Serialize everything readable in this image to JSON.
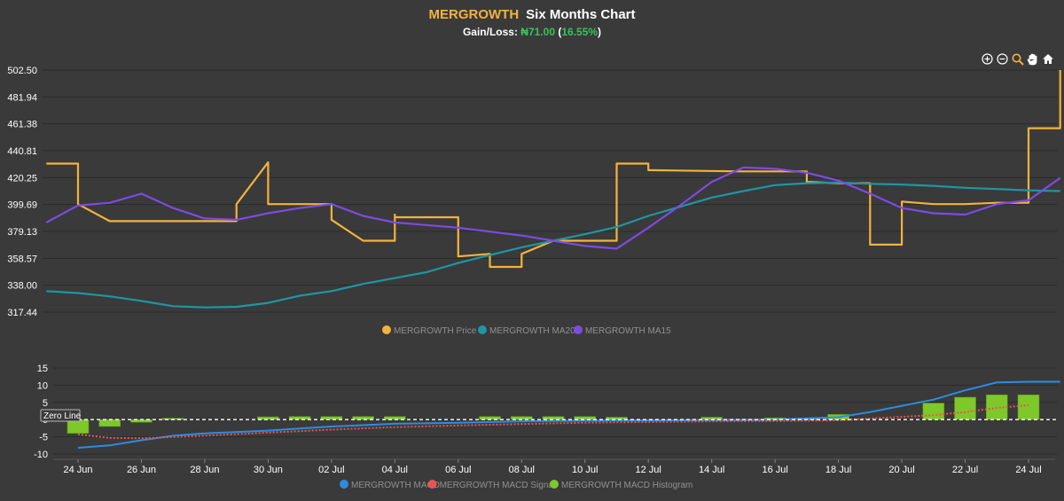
{
  "header": {
    "symbol": "MERGROWTH",
    "title": "Six Months Chart",
    "gain_label": "Gain/Loss:",
    "gain_value": "₦71.00",
    "gain_pct": "16.55%",
    "gain_open": "(",
    "gain_close": ")"
  },
  "toolbar": [
    {
      "icon": "zoom-in-icon"
    },
    {
      "icon": "zoom-out-icon"
    },
    {
      "icon": "magnifier-icon"
    },
    {
      "icon": "pan-hand-icon"
    },
    {
      "icon": "home-icon"
    }
  ],
  "colors": {
    "background": "#3a3a3a",
    "grid": "#2b2b2b",
    "price": "#f2b33d",
    "ma200": "#1e96a3",
    "ma15": "#7d4be0",
    "macd": "#2e8ce0",
    "signal": "#e85555",
    "histogram": "#7ec82a",
    "gain": "#37c45e"
  },
  "chart_data": [
    {
      "type": "line",
      "ylim": [
        317.44,
        502.5
      ],
      "yticks": [
        "502.50",
        "481.94",
        "461.38",
        "440.81",
        "420.25",
        "399.69",
        "379.13",
        "358.57",
        "338.00",
        "317.44"
      ],
      "legend_position": "bottom-center",
      "series": [
        {
          "name": "MERGROWTH Price",
          "color": "#f2b33d",
          "points": [
            [
              "23 Jun",
              431
            ],
            [
              "24 Jun",
              431
            ],
            [
              "24 Jun",
              400
            ],
            [
              "25 Jun",
              387
            ],
            [
              "29 Jun",
              387
            ],
            [
              "29 Jun",
              400
            ],
            [
              "30 Jun",
              432
            ],
            [
              "30 Jun",
              400
            ],
            [
              "02 Jul",
              400
            ],
            [
              "02 Jul",
              388
            ],
            [
              "03 Jul",
              372
            ],
            [
              "04 Jul",
              372
            ],
            [
              "04 Jul",
              392
            ],
            [
              "04 Jul",
              390
            ],
            [
              "06 Jul",
              390
            ],
            [
              "06 Jul",
              360
            ],
            [
              "07 Jul",
              362
            ],
            [
              "07 Jul",
              352
            ],
            [
              "08 Jul",
              352
            ],
            [
              "08 Jul",
              362
            ],
            [
              "09 Jul",
              372
            ],
            [
              "10 Jul",
              372
            ],
            [
              "11 Jul",
              372
            ],
            [
              "11 Jul",
              431
            ],
            [
              "12 Jul",
              431
            ],
            [
              "12 Jul",
              426
            ],
            [
              "15 Jul",
              425
            ],
            [
              "17 Jul",
              425
            ],
            [
              "17 Jul",
              417
            ],
            [
              "18 Jul",
              416
            ],
            [
              "19 Jul",
              416
            ],
            [
              "19 Jul",
              369
            ],
            [
              "20 Jul",
              369
            ],
            [
              "20 Jul",
              402
            ],
            [
              "21 Jul",
              400
            ],
            [
              "22 Jul",
              400
            ],
            [
              "23 Jul",
              401
            ],
            [
              "24 Jul",
              401
            ],
            [
              "24 Jul",
              430
            ],
            [
              "24 Jul",
              458
            ],
            [
              "25 Jul",
              458
            ],
            [
              "25 Jul",
              502.5
            ]
          ]
        },
        {
          "name": "MERGROWTH MA200",
          "color": "#1e96a3",
          "points": [
            [
              "23 Jun",
              333.5
            ],
            [
              "24 Jun",
              332
            ],
            [
              "25 Jun",
              329.5
            ],
            [
              "26 Jun",
              326
            ],
            [
              "27 Jun",
              322
            ],
            [
              "28 Jun",
              321
            ],
            [
              "29 Jun",
              321.5
            ],
            [
              "30 Jun",
              324.5
            ],
            [
              "01 Jul",
              330
            ],
            [
              "02 Jul",
              333.5
            ],
            [
              "03 Jul",
              339
            ],
            [
              "04 Jul",
              343.5
            ],
            [
              "05 Jul",
              348
            ],
            [
              "06 Jul",
              355
            ],
            [
              "07 Jul",
              361
            ],
            [
              "08 Jul",
              367
            ],
            [
              "09 Jul",
              372
            ],
            [
              "10 Jul",
              377
            ],
            [
              "11 Jul",
              382.5
            ],
            [
              "12 Jul",
              391
            ],
            [
              "13 Jul",
              398
            ],
            [
              "14 Jul",
              405
            ],
            [
              "15 Jul",
              410
            ],
            [
              "16 Jul",
              414.5
            ],
            [
              "17 Jul",
              416
            ],
            [
              "18 Jul",
              416.5
            ],
            [
              "19 Jul",
              415.5
            ],
            [
              "20 Jul",
              415
            ],
            [
              "21 Jul",
              414
            ],
            [
              "22 Jul",
              412.5
            ],
            [
              "23 Jul",
              411.5
            ],
            [
              "24 Jul",
              410.5
            ],
            [
              "25 Jul",
              410
            ]
          ]
        },
        {
          "name": "MERGROWTH MA15",
          "color": "#7d4be0",
          "points": [
            [
              "23 Jun",
              386
            ],
            [
              "24 Jun",
              399
            ],
            [
              "25 Jun",
              401
            ],
            [
              "26 Jun",
              408
            ],
            [
              "27 Jun",
              397
            ],
            [
              "28 Jun",
              389
            ],
            [
              "29 Jun",
              388
            ],
            [
              "30 Jun",
              393
            ],
            [
              "01 Jul",
              397
            ],
            [
              "02 Jul",
              400
            ],
            [
              "03 Jul",
              391
            ],
            [
              "04 Jul",
              386
            ],
            [
              "05 Jul",
              384
            ],
            [
              "06 Jul",
              382
            ],
            [
              "07 Jul",
              379
            ],
            [
              "08 Jul",
              376
            ],
            [
              "09 Jul",
              372
            ],
            [
              "10 Jul",
              368
            ],
            [
              "11 Jul",
              366
            ],
            [
              "12 Jul",
              382
            ],
            [
              "13 Jul",
              399
            ],
            [
              "14 Jul",
              417
            ],
            [
              "15 Jul",
              428
            ],
            [
              "16 Jul",
              427
            ],
            [
              "17 Jul",
              424
            ],
            [
              "18 Jul",
              418
            ],
            [
              "19 Jul",
              408
            ],
            [
              "20 Jul",
              397
            ],
            [
              "21 Jul",
              393
            ],
            [
              "22 Jul",
              392
            ],
            [
              "23 Jul",
              400
            ],
            [
              "24 Jul",
              403
            ],
            [
              "25 Jul",
              420
            ]
          ]
        }
      ]
    },
    {
      "type": "bar",
      "ylim": [
        -10,
        15
      ],
      "yticks": [
        "15",
        "10",
        "5",
        "0",
        "-5",
        "-10"
      ],
      "xticks": [
        "24 Jun",
        "26 Jun",
        "28 Jun",
        "30 Jun",
        "02 Jul",
        "04 Jul",
        "06 Jul",
        "08 Jul",
        "10 Jul",
        "12 Jul",
        "14 Jul",
        "16 Jul",
        "18 Jul",
        "20 Jul",
        "22 Jul",
        "24 Jul"
      ],
      "annotation": "Zero Line",
      "legend_position": "bottom-center",
      "series": [
        {
          "name": "MERGROWTH MACD",
          "color": "#2e8ce0",
          "style": "line",
          "points": [
            [
              "24 Jun",
              -8.2
            ],
            [
              "25 Jun",
              -7.5
            ],
            [
              "26 Jun",
              -6
            ],
            [
              "27 Jun",
              -4.7
            ],
            [
              "28 Jun",
              -4
            ],
            [
              "30 Jun",
              -3.2
            ],
            [
              "01 Jul",
              -2.6
            ],
            [
              "02 Jul",
              -2
            ],
            [
              "04 Jul",
              -1.2
            ],
            [
              "06 Jul",
              -0.9
            ],
            [
              "08 Jul",
              -0.5
            ],
            [
              "10 Jul",
              -0.3
            ],
            [
              "12 Jul",
              -0.2
            ],
            [
              "14 Jul",
              -0.1
            ],
            [
              "16 Jul",
              0
            ],
            [
              "18 Jul",
              0.7
            ],
            [
              "19 Jul",
              2.2
            ],
            [
              "20 Jul",
              4
            ],
            [
              "21 Jul",
              5.8
            ],
            [
              "22 Jul",
              8.5
            ],
            [
              "23 Jul",
              10.8
            ],
            [
              "24 Jul",
              11
            ],
            [
              "25 Jul",
              11
            ]
          ]
        },
        {
          "name": "MERGROWTH MACD Signal",
          "color": "#e85555",
          "style": "dotted",
          "points": [
            [
              "24 Jun",
              -4.3
            ],
            [
              "25 Jun",
              -5.3
            ],
            [
              "26 Jun",
              -5.4
            ],
            [
              "28 Jun",
              -4.7
            ],
            [
              "30 Jun",
              -3.8
            ],
            [
              "02 Jul",
              -2.9
            ],
            [
              "04 Jul",
              -2.2
            ],
            [
              "06 Jul",
              -1.7
            ],
            [
              "08 Jul",
              -1.3
            ],
            [
              "10 Jul",
              -0.9
            ],
            [
              "12 Jul",
              -0.7
            ],
            [
              "14 Jul",
              -0.5
            ],
            [
              "16 Jul",
              -0.4
            ],
            [
              "18 Jul",
              -0.2
            ],
            [
              "19 Jul",
              0.3
            ],
            [
              "20 Jul",
              0.8
            ],
            [
              "21 Jul",
              1.3
            ],
            [
              "22 Jul",
              2.2
            ],
            [
              "23 Jul",
              3.4
            ],
            [
              "24 Jul",
              4.2
            ]
          ]
        },
        {
          "name": "MERGROWTH MACD Histogram",
          "color": "#7ec82a",
          "style": "bar",
          "bars": [
            [
              "24 Jun",
              -4
            ],
            [
              "25 Jun",
              -2
            ],
            [
              "26 Jun",
              -0.8
            ],
            [
              "27 Jun",
              0.4
            ],
            [
              "30 Jun",
              0.8
            ],
            [
              "01 Jul",
              0.9
            ],
            [
              "02 Jul",
              0.9
            ],
            [
              "03 Jul",
              0.9
            ],
            [
              "04 Jul",
              0.9
            ],
            [
              "07 Jul",
              0.9
            ],
            [
              "08 Jul",
              0.9
            ],
            [
              "09 Jul",
              0.9
            ],
            [
              "10 Jul",
              0.9
            ],
            [
              "11 Jul",
              0.7
            ],
            [
              "14 Jul",
              0.7
            ],
            [
              "16 Jul",
              0.5
            ],
            [
              "17 Jul",
              0.4
            ],
            [
              "18 Jul",
              1.5
            ],
            [
              "21 Jul",
              4.8
            ],
            [
              "22 Jul",
              6.5
            ],
            [
              "23 Jul",
              7.2
            ],
            [
              "24 Jul",
              7.2
            ]
          ]
        }
      ]
    }
  ]
}
